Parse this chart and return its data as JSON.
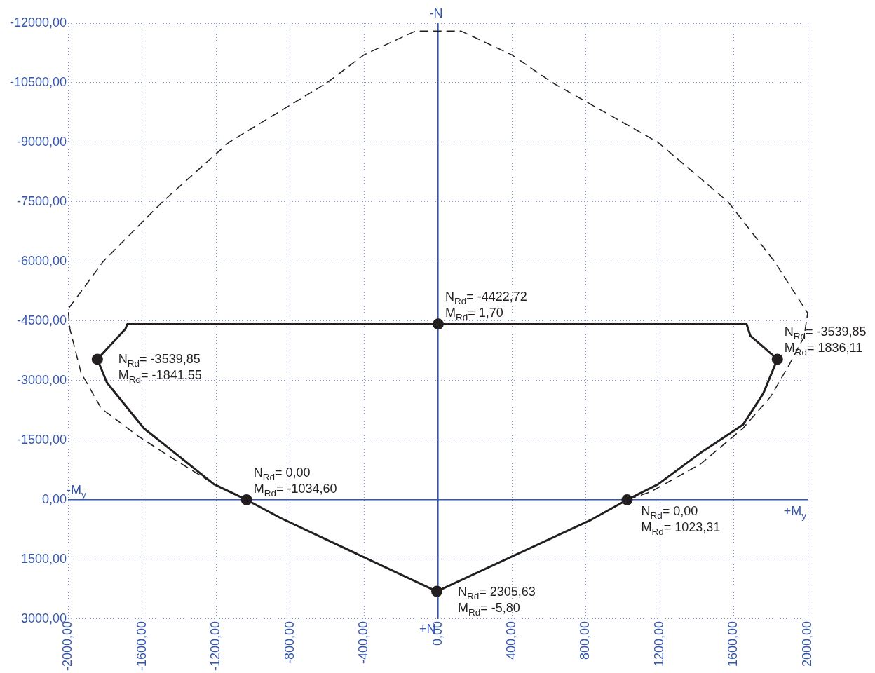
{
  "chart_data": {
    "type": "line",
    "xlim": [
      -2000,
      2000
    ],
    "ylim": [
      3000,
      -12000
    ],
    "xticks": [
      {
        "value": -2000,
        "label": "-2000,00"
      },
      {
        "value": -1600,
        "label": "-1600,00"
      },
      {
        "value": -1200,
        "label": "-1200,00"
      },
      {
        "value": -800,
        "label": "-800,00"
      },
      {
        "value": -400,
        "label": "-400,00"
      },
      {
        "value": 0,
        "label": "0,00"
      },
      {
        "value": 400,
        "label": "400,00"
      },
      {
        "value": 800,
        "label": "800,00"
      },
      {
        "value": 1200,
        "label": "1200,00"
      },
      {
        "value": 1600,
        "label": "1600,00"
      },
      {
        "value": 2000,
        "label": "2000,00"
      }
    ],
    "yticks": [
      {
        "value": -12000,
        "label": "-12000,00"
      },
      {
        "value": -10500,
        "label": "-10500,00"
      },
      {
        "value": -9000,
        "label": "-9000,00"
      },
      {
        "value": -7500,
        "label": "-7500,00"
      },
      {
        "value": -6000,
        "label": "-6000,00"
      },
      {
        "value": -4500,
        "label": "-4500,00"
      },
      {
        "value": -3000,
        "label": "-3000,00"
      },
      {
        "value": -1500,
        "label": "-1500,00"
      },
      {
        "value": 0,
        "label": "0,00"
      },
      {
        "value": 1500,
        "label": "1500,00"
      },
      {
        "value": 3000,
        "label": "3000,00"
      }
    ],
    "grid": true,
    "legend": false,
    "series": [
      {
        "color": "#231f20",
        "line_style": "dashed",
        "marker": "none",
        "x": [
          -1035,
          -1210,
          -1420,
          -1620,
          -1820,
          -1930,
          -1990,
          -2000,
          -1810,
          -1490,
          -1130,
          -600,
          -400,
          -122,
          126,
          400,
          620,
          1190,
          1570,
          1820,
          2000,
          1980,
          1900,
          1800,
          1650,
          1420,
          1150,
          1023
        ],
        "values": [
          0,
          -400,
          -1000,
          -1600,
          -2300,
          -3200,
          -4300,
          -4800,
          -6000,
          -7500,
          -9000,
          -10500,
          -11200,
          -11800,
          -11800,
          -11200,
          -10500,
          -9000,
          -7500,
          -6000,
          -4700,
          -4100,
          -3400,
          -2600,
          -1800,
          -900,
          -200,
          0
        ]
      },
      {
        "color": "#231f20",
        "line_style": "solid",
        "marker": "none",
        "x": [
          -1841.55,
          -1790,
          -1590,
          -1210,
          -1034.6,
          -850,
          -5.8
        ],
        "values": [
          -3539.85,
          -2950,
          -1800,
          -390,
          0,
          460,
          2305.63
        ]
      },
      {
        "color": "#231f20",
        "line_style": "solid",
        "marker": "none",
        "x": [
          -5.8,
          830,
          1023.31,
          1190,
          1420,
          1650,
          1760,
          1836.11
        ],
        "values": [
          2305.63,
          500,
          0,
          -390,
          -1180,
          -1890,
          -2680,
          -3539.85
        ]
      },
      {
        "color": "#231f20",
        "line_style": "solid",
        "marker": "none",
        "x": [
          -1841.55,
          -1690,
          -1680,
          1670,
          1690,
          1836.11
        ],
        "values": [
          -3539.85,
          -4300,
          -4420,
          -4420,
          -4130,
          -3539.85
        ]
      },
      {
        "type": "scatter",
        "color": "#231f20",
        "marker": "circle",
        "x": [
          -1841.55,
          1.7,
          1836.11,
          -1034.6,
          1023.31,
          -5.8
        ],
        "values": [
          -3539.85,
          -4422.72,
          -3539.85,
          0,
          0,
          2305.63
        ]
      }
    ],
    "annotations": [
      "-N",
      "+N",
      "-M$_{y}$",
      "+M$_{y}$",
      {
        "text": "N$_{Rd}$= -3539,85\nM$_{Rd}$= -1841,55",
        "x": -1841.55,
        "y": -3539.85
      },
      {
        "text": "N$_{Rd}$= -4422,72\nM$_{Rd}$= 1,70",
        "x": 1.7,
        "y": -4422.72
      },
      {
        "text": "N$_{Rd}$= -3539,85\nM$_{Rd}$= 1836,11",
        "x": 1836.11,
        "y": -3539.85
      },
      {
        "text": "N$_{Rd}$= 0,00\nM$_{Rd}$= -1034,60",
        "x": -1034.6,
        "y": 0
      },
      {
        "text": "N$_{Rd}$= 0,00\nM$_{Rd}$= 1023,31",
        "x": 1023.31,
        "y": 0
      },
      {
        "text": "N$_{Rd}$= 2305,63\nM$_{Rd}$= -5,80",
        "x": -5.8,
        "y": 2305.63
      }
    ]
  }
}
